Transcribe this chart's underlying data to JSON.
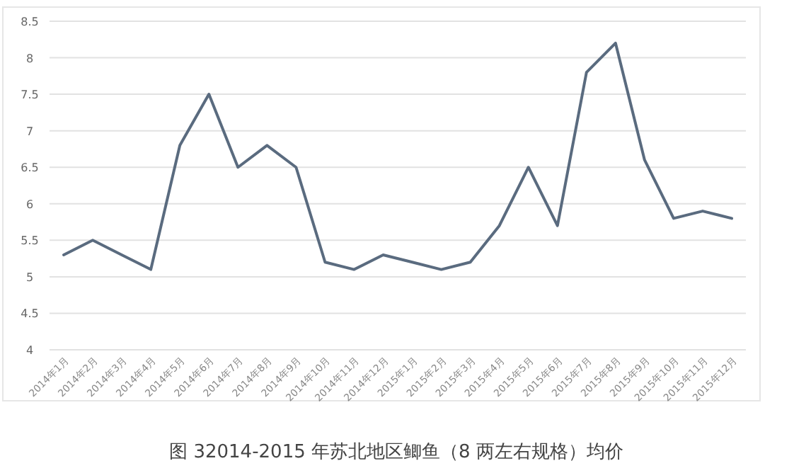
{
  "chart_data": {
    "type": "line",
    "title": "图 32014-2015 年苏北地区鲫鱼（8 两左右规格）均价",
    "categories": [
      "2014年1月",
      "2014年2月",
      "2014年3月",
      "2014年4月",
      "2014年5月",
      "2014年6月",
      "2014年7月",
      "2014年8月",
      "2014年9月",
      "2014年10月",
      "2014年11月",
      "2014年12月",
      "2015年1月",
      "2015年2月",
      "2015年3月",
      "2015年4月",
      "2015年5月",
      "2015年6月",
      "2015年7月",
      "2015年8月",
      "2015年9月",
      "2015年10月",
      "2015年11月",
      "2015年12月"
    ],
    "series": [
      {
        "color": "#5a6b7f",
        "values": [
          5.3,
          5.5,
          5.3,
          5.1,
          6.8,
          7.5,
          6.5,
          6.8,
          6.5,
          5.2,
          5.1,
          5.3,
          5.2,
          5.1,
          5.2,
          5.7,
          6.5,
          5.7,
          7.8,
          8.2,
          6.6,
          5.8,
          5.9,
          5.8
        ]
      }
    ],
    "ylim": [
      4,
      8.5
    ],
    "yticks": [
      4,
      4.5,
      5,
      5.5,
      6,
      6.5,
      7,
      7.5,
      8,
      8.5
    ],
    "grid": "y",
    "marker": "none",
    "line_style": "solid"
  }
}
